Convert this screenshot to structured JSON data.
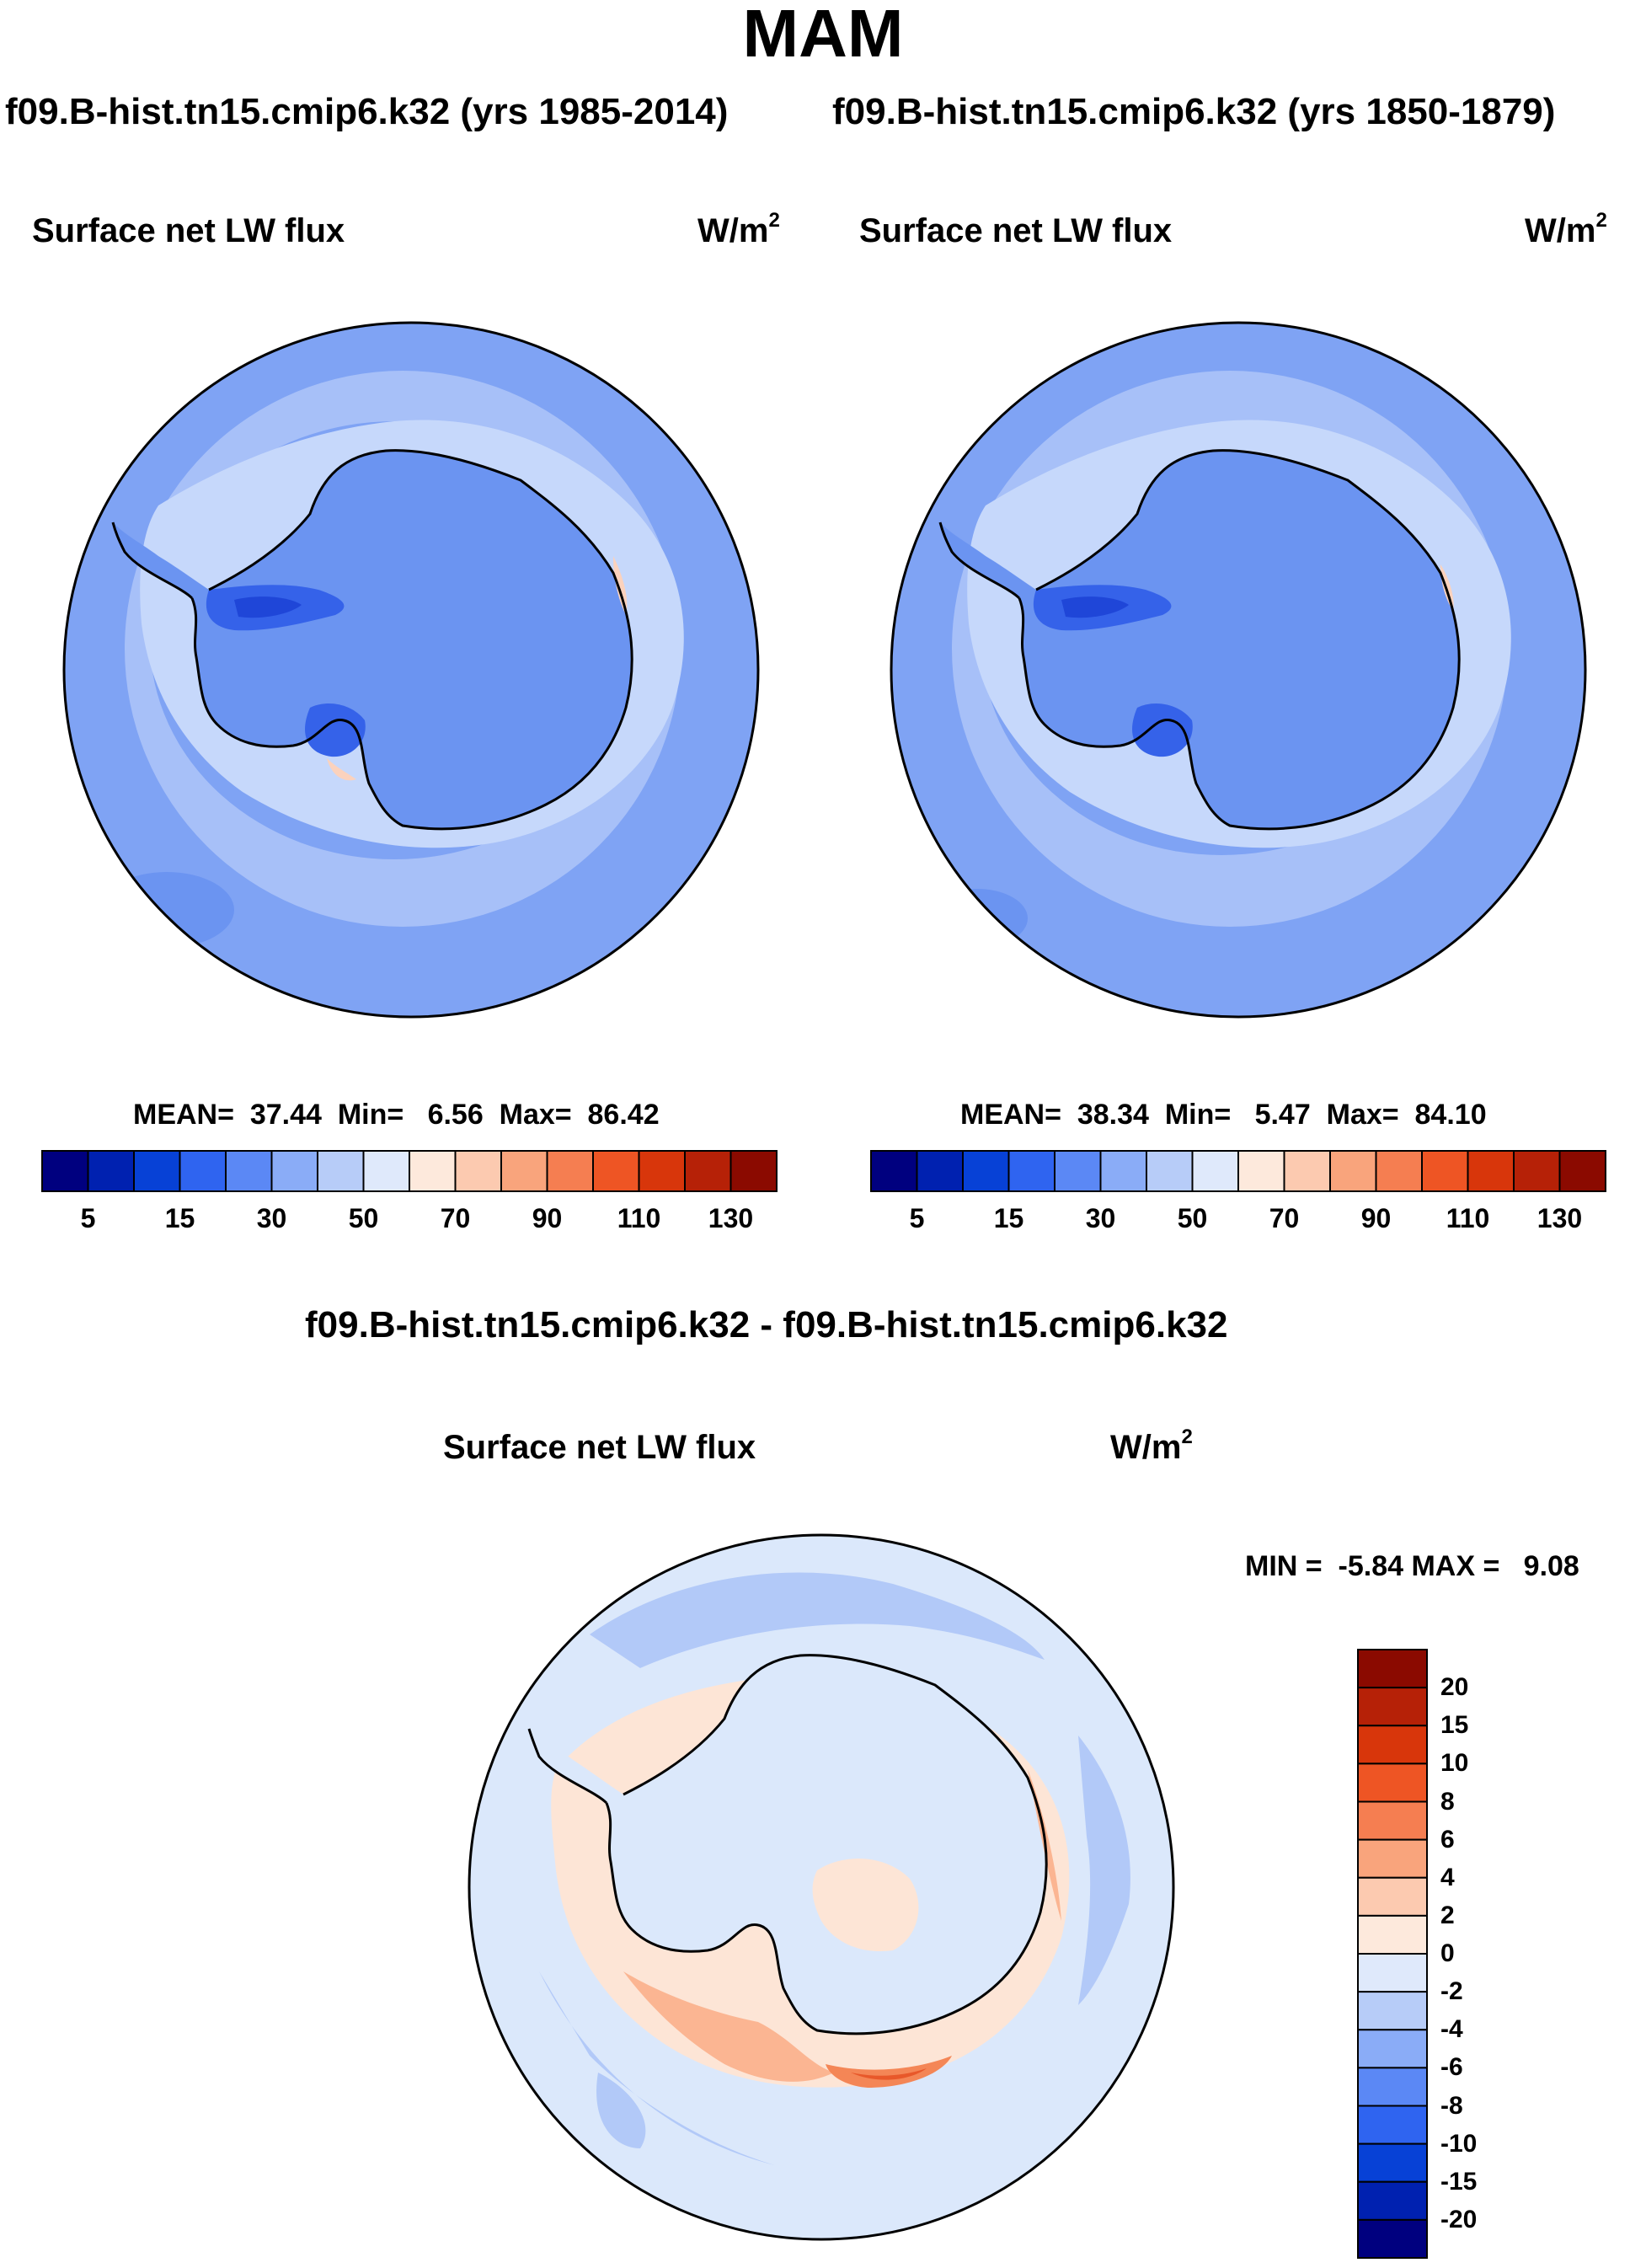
{
  "season": "MAM",
  "top_titles": {
    "left": "f09.B-hist.tn15.cmip6.k32 (yrs 1985-2014)",
    "right": "f09.B-hist.tn15.cmip6.k32 (yrs 1850-1879)"
  },
  "diff_title": "f09.B-hist.tn15.cmip6.k32 - f09.B-hist.tn15.cmip6.k32",
  "panels": [
    {
      "label": "Surface net LW flux",
      "units_base": "W/m",
      "units_exp": "2",
      "stats": "MEAN=  37.44  Min=   6.56  Max=  86.42"
    },
    {
      "label": "Surface net LW flux",
      "units_base": "W/m",
      "units_exp": "2",
      "stats": "MEAN=  38.34  Min=   5.47  Max=  84.10"
    },
    {
      "label": "Surface net LW flux",
      "units_base": "W/m",
      "units_exp": "2",
      "stats": "MIN =  -5.84 MAX =   9.08"
    }
  ],
  "colorbar_abs": {
    "colors": [
      "#00007f",
      "#0021b0",
      "#0741d6",
      "#2f64f0",
      "#5b88f5",
      "#8aacf7",
      "#b7ccf8",
      "#dfe9fb",
      "#fde9dc",
      "#fccab0",
      "#f9a47c",
      "#f57e51",
      "#ee5524",
      "#d8360b",
      "#b62107",
      "#8b0a00"
    ],
    "ticks": [
      "5",
      "15",
      "30",
      "50",
      "70",
      "90",
      "110",
      "130"
    ]
  },
  "colorbar_diff": {
    "colors": [
      "#00007f",
      "#0021b0",
      "#0741d6",
      "#2f64f0",
      "#5b88f5",
      "#8aacf7",
      "#b7ccf8",
      "#dfe9fb",
      "#fde9dc",
      "#fccab0",
      "#f9a47c",
      "#f57e51",
      "#ee5524",
      "#d8360b",
      "#b62107",
      "#8b0a00"
    ],
    "ticks": [
      "20",
      "15",
      "10",
      "8",
      "6",
      "4",
      "2",
      "0",
      "-2",
      "-4",
      "-6",
      "-8",
      "-10",
      "-15",
      "-20"
    ]
  },
  "map_colors": {
    "ocean_far": "#7fa3f4",
    "ocean_ring": "#a7c0f8",
    "ice_edge": "#c6d8fb",
    "continent": "#6b94f1",
    "low": "#3562e9",
    "lowest": "#1f46d8",
    "warm": "#fbd2bd",
    "diff_base": "#dbe8fb",
    "diff_ring": "#b2c9f8",
    "diff_pos1": "#fde5d6",
    "diff_pos2": "#fbb592",
    "diff_pos3": "#f48656",
    "diff_pos4": "#e8582a"
  }
}
